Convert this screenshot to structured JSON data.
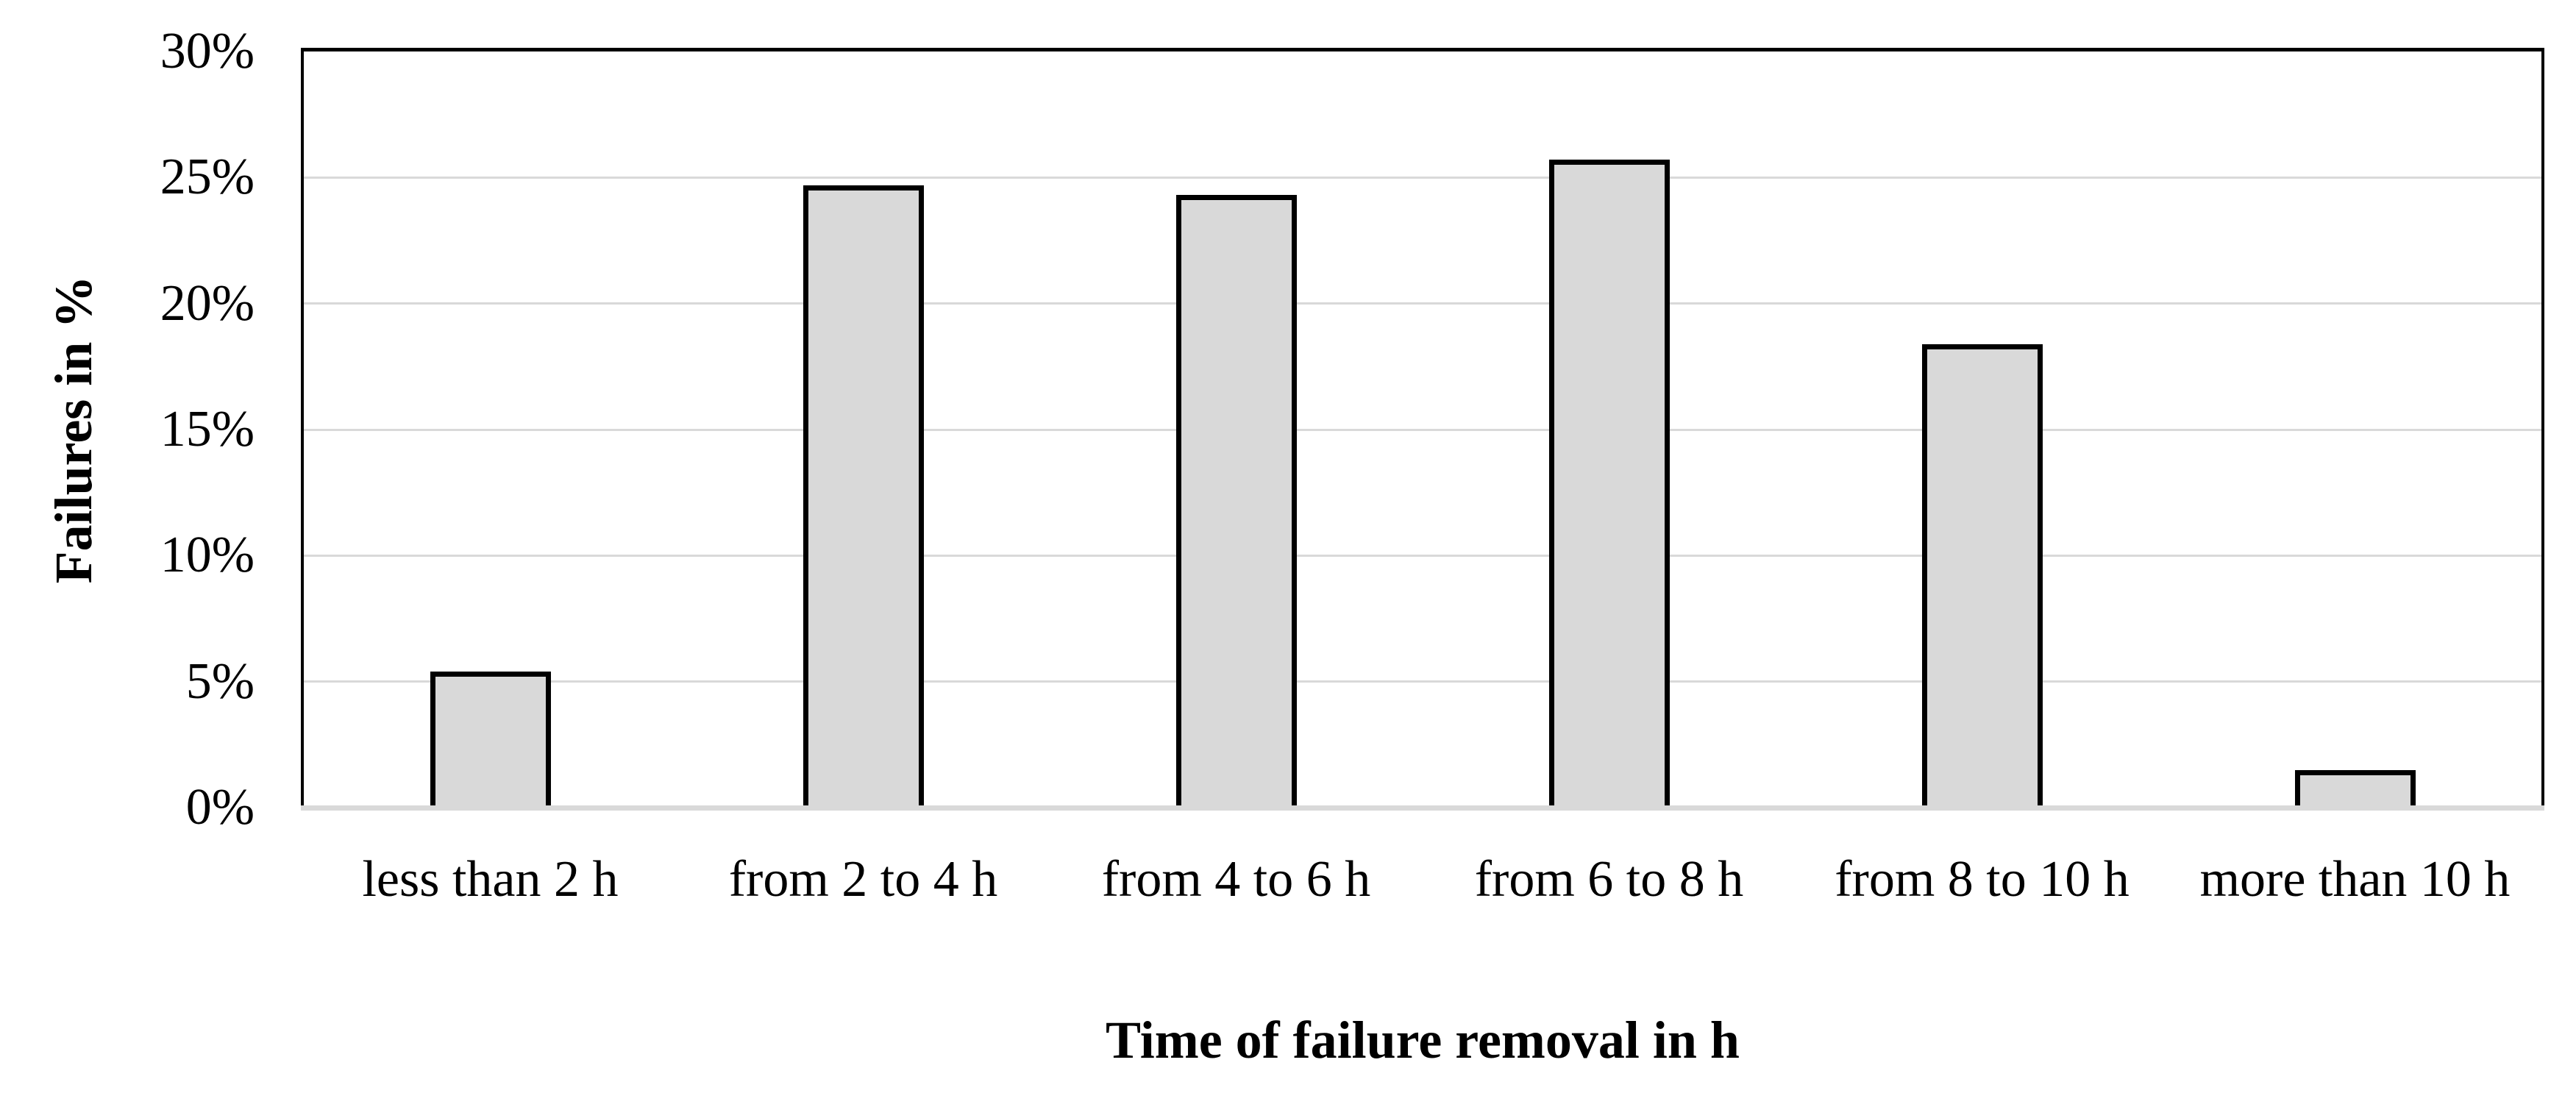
{
  "chart_data": {
    "type": "bar",
    "title": "",
    "categories": [
      "less than 2 h",
      "from 2 to 4 h",
      "from 4 to 6 h",
      "from 6 to 8 h",
      "from 8 to 10 h",
      "more than 10 h"
    ],
    "values": [
      5.4,
      24.7,
      24.3,
      25.7,
      18.4,
      1.5
    ],
    "xlabel": "Time of failure removal in h",
    "ylabel": "Failures in %",
    "ylim": [
      0,
      30
    ],
    "y_tick_step": 5,
    "y_tick_labels": [
      "0%",
      "5%",
      "10%",
      "15%",
      "20%",
      "25%",
      "30%"
    ],
    "grid": true,
    "legend": "none",
    "colors": {
      "bar_fill": "#d9d9d9",
      "bar_border": "#000000",
      "gridline": "#d9d9d9",
      "baseline": "#d9d9d9",
      "plot_border": "#000000",
      "background": "#ffffff"
    }
  }
}
